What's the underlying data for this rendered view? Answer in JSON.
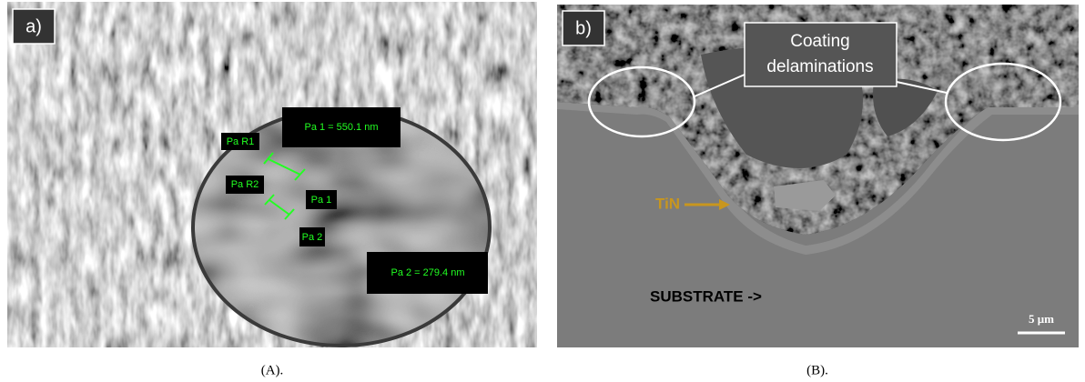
{
  "panel_a": {
    "label": "a)",
    "annotations": {
      "pa_r1": "Pa R1",
      "pa_r2": "Pa R2",
      "pa_1": "Pa 1",
      "pa_2": "Pa 2",
      "measure_1": "Pa 1 = 550.1 nm",
      "measure_2": "Pa 2 = 279.4 nm"
    },
    "caption": "(A)."
  },
  "panel_b": {
    "label": "b)",
    "callout": [
      "Coating",
      "delaminations"
    ],
    "tin": "TiN",
    "substrate": "SUBSTRATE ->",
    "scale_bar": "5 μm",
    "caption": "(B)."
  }
}
